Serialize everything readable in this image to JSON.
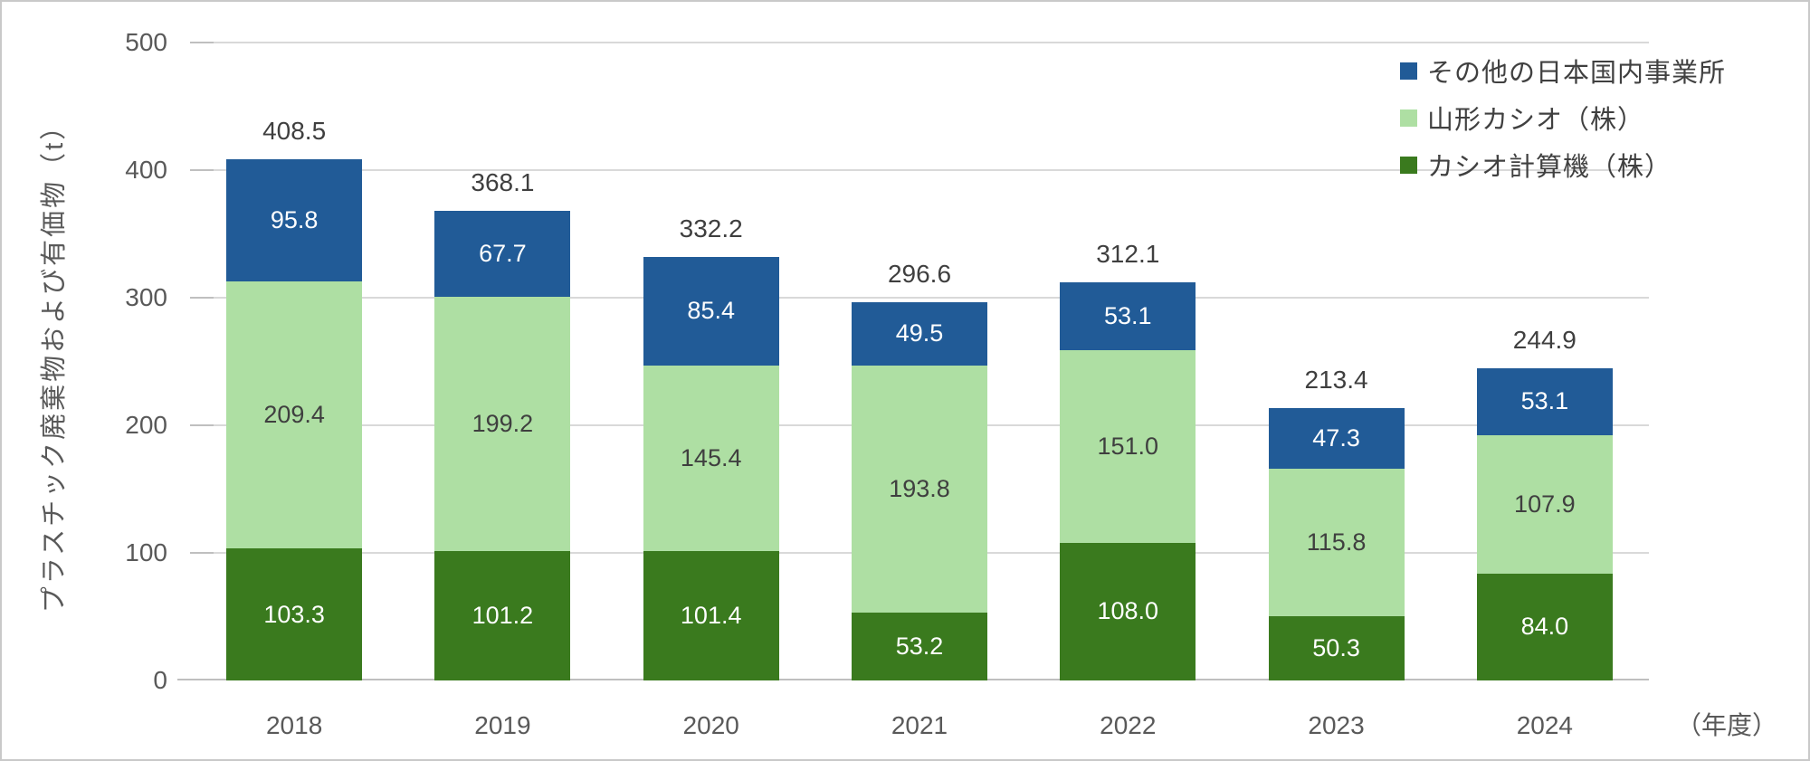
{
  "chart_data": {
    "type": "bar",
    "stacked": true,
    "categories": [
      "2018",
      "2019",
      "2020",
      "2021",
      "2022",
      "2023",
      "2024"
    ],
    "series": [
      {
        "name": "カシオ計算機（株）",
        "color": "#3a7a1e",
        "label_color": "#ffffff",
        "values": [
          103.3,
          101.2,
          101.4,
          53.2,
          108.0,
          50.3,
          84.0
        ]
      },
      {
        "name": "山形カシオ（株）",
        "color": "#aedfa3",
        "label_color": "#3f3f3f",
        "values": [
          209.4,
          199.2,
          145.4,
          193.8,
          151.0,
          115.8,
          107.9
        ]
      },
      {
        "name": "その他の日本国内事業所",
        "color": "#215b97",
        "label_color": "#ffffff",
        "values": [
          95.8,
          67.7,
          85.4,
          49.5,
          53.1,
          47.3,
          53.1
        ]
      }
    ],
    "totals": [
      408.5,
      368.1,
      332.2,
      296.6,
      312.1,
      213.4,
      244.9
    ],
    "ylabel": "プラスチック廃棄物および有価物（t）",
    "xunit": "（年度）",
    "ylim": [
      0,
      500
    ],
    "yticks": [
      0,
      100,
      200,
      300,
      400,
      500
    ],
    "grid": true,
    "legend_position": "top-right",
    "legend_order_top_to_bottom": [
      "その他の日本国内事業所",
      "山形カシオ（株）",
      "カシオ計算機（株）"
    ]
  },
  "colors": {
    "gridline": "#d9d9d9",
    "axis": "#bfbfbf",
    "tick_label": "#595959",
    "total_label": "#3f3f3f",
    "legend_label": "#404040"
  }
}
